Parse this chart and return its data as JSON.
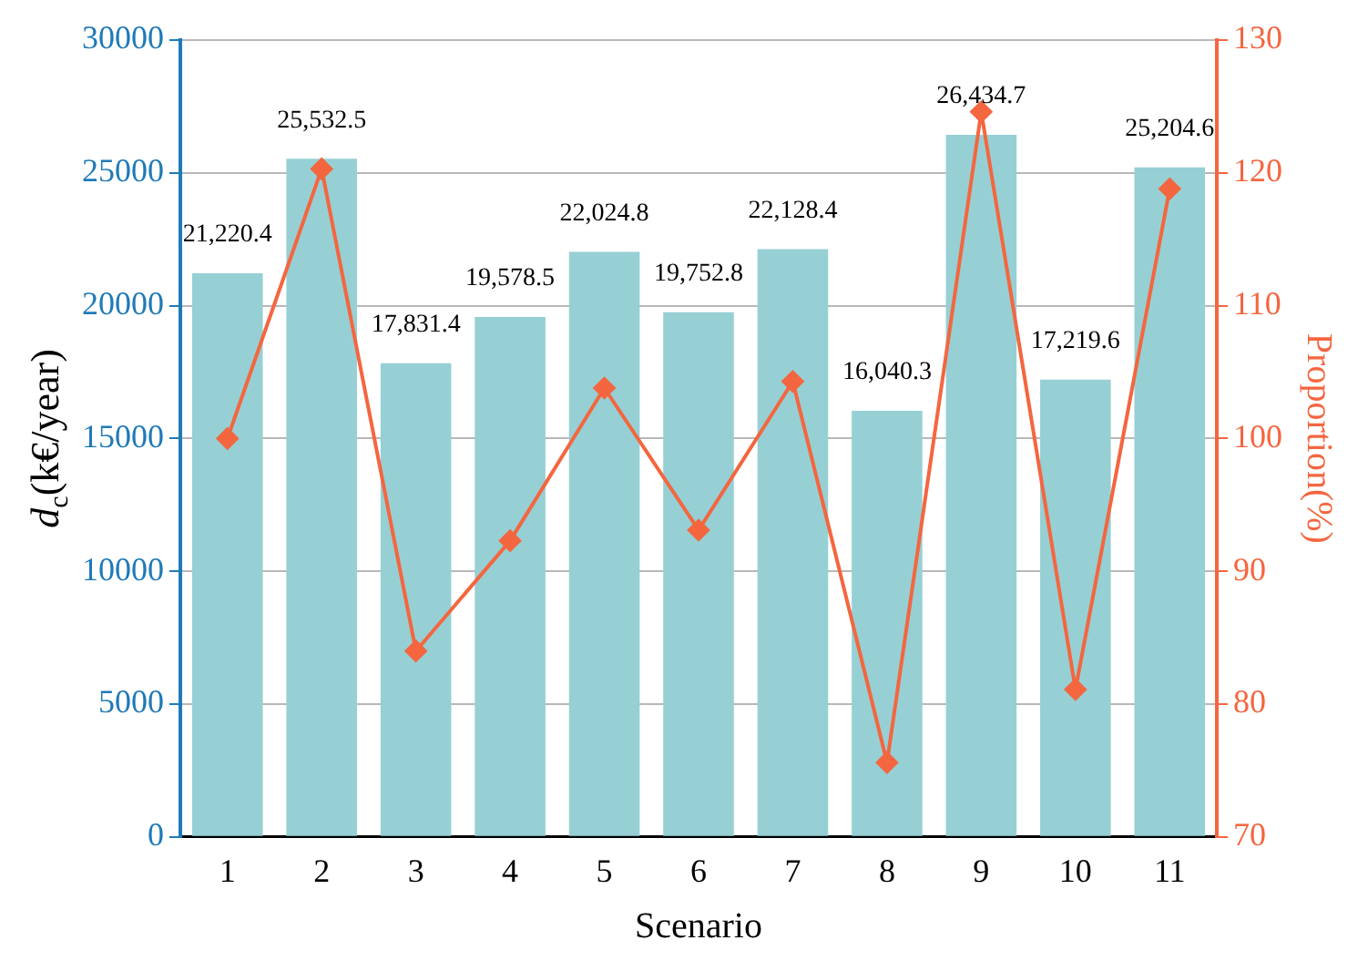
{
  "chart_data": {
    "type": "bar",
    "xlabel": "Scenario",
    "ylabel": "d$_{c}$(k€/year)",
    "y2label": "Proportion(%)",
    "categories": [
      "1",
      "2",
      "3",
      "4",
      "5",
      "6",
      "7",
      "8",
      "9",
      "10",
      "11"
    ],
    "series": [
      {
        "color": "#96d0d5",
        "values": [
          21220.4,
          25532.5,
          17831.4,
          19578.5,
          22024.8,
          19752.8,
          22128.4,
          16040.3,
          26434.7,
          17219.6,
          25204.6
        ],
        "value_labels": [
          "21,220.4",
          "25,532.5",
          "17,831.4",
          "19,578.5",
          "22,024.8",
          "19,752.8",
          "22,128.4",
          "16,040.3",
          "26,434.7",
          "17,219.6",
          "25,204.6"
        ]
      },
      {
        "type": "line",
        "axis": "y2",
        "color": "#f4663f",
        "marker": "diamond",
        "values": [
          100,
          120.3,
          84.0,
          92.3,
          103.8,
          93.1,
          104.3,
          75.6,
          124.6,
          81.1,
          118.8
        ]
      }
    ],
    "ylim": [
      0,
      30000
    ],
    "yticks": [
      0,
      5000,
      10000,
      15000,
      20000,
      25000,
      30000
    ],
    "y2lim": [
      70,
      130
    ],
    "y2ticks": [
      70,
      80,
      90,
      100,
      110,
      120,
      130
    ],
    "grid": "y",
    "legend": false
  }
}
